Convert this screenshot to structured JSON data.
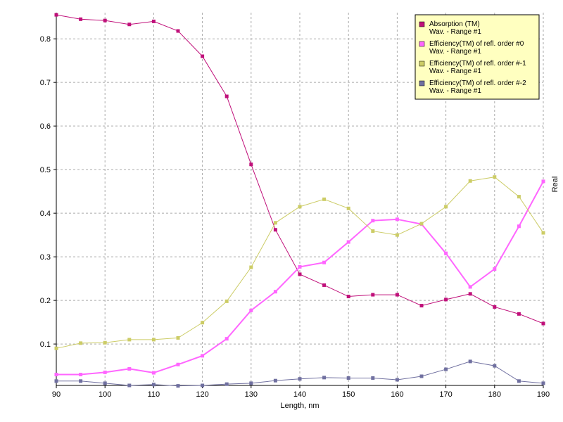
{
  "chart_data": {
    "type": "line",
    "x_label": "Length, nm",
    "y_label": "Real",
    "x": [
      90,
      95,
      100,
      105,
      110,
      115,
      120,
      125,
      130,
      135,
      140,
      145,
      150,
      155,
      160,
      165,
      170,
      175,
      180,
      185,
      190
    ],
    "xlim": [
      90,
      190
    ],
    "xticks": [
      90,
      100,
      110,
      120,
      130,
      140,
      150,
      160,
      170,
      180,
      190
    ],
    "ylim": [
      0.005,
      0.86
    ],
    "yticks": [
      0.1,
      0.2,
      0.3,
      0.4,
      0.5,
      0.6,
      0.7,
      0.8
    ],
    "grid": true,
    "legend": "upper right",
    "series": [
      {
        "name": "Absorption (TM)",
        "range": "Wav. - Range #1",
        "color": "#c0107a",
        "values": [
          0.855,
          0.845,
          0.842,
          0.833,
          0.84,
          0.818,
          0.76,
          0.668,
          0.512,
          0.362,
          0.26,
          0.235,
          0.209,
          0.213,
          0.213,
          0.188,
          0.202,
          0.215,
          0.185,
          0.169,
          0.147
        ]
      },
      {
        "name": "Efficiency(TM) of refl. order #0",
        "range": "Wav. - Range #1",
        "color": "#ff66ff",
        "values": [
          0.03,
          0.03,
          0.035,
          0.043,
          0.034,
          0.053,
          0.073,
          0.112,
          0.177,
          0.22,
          0.277,
          0.287,
          0.334,
          0.383,
          0.386,
          0.375,
          0.308,
          0.231,
          0.272,
          0.37,
          0.473
        ]
      },
      {
        "name": "Efficiency(TM) of refl. order #-1",
        "range": "Wav. - Range #1",
        "color": "#cccc66",
        "values": [
          0.09,
          0.102,
          0.103,
          0.11,
          0.11,
          0.114,
          0.149,
          0.198,
          0.276,
          0.378,
          0.415,
          0.432,
          0.411,
          0.359,
          0.35,
          0.376,
          0.415,
          0.474,
          0.483,
          0.438,
          0.355
        ]
      },
      {
        "name": "Efficiency(TM) of refl. order #-2",
        "range": "Wav. - Range #1",
        "color": "#7070a0",
        "values": [
          0.015,
          0.015,
          0.01,
          0.005,
          0.007,
          0.004,
          0.005,
          0.008,
          0.01,
          0.016,
          0.02,
          0.023,
          0.022,
          0.022,
          0.018,
          0.026,
          0.042,
          0.06,
          0.05,
          0.015,
          0.01
        ]
      }
    ]
  }
}
